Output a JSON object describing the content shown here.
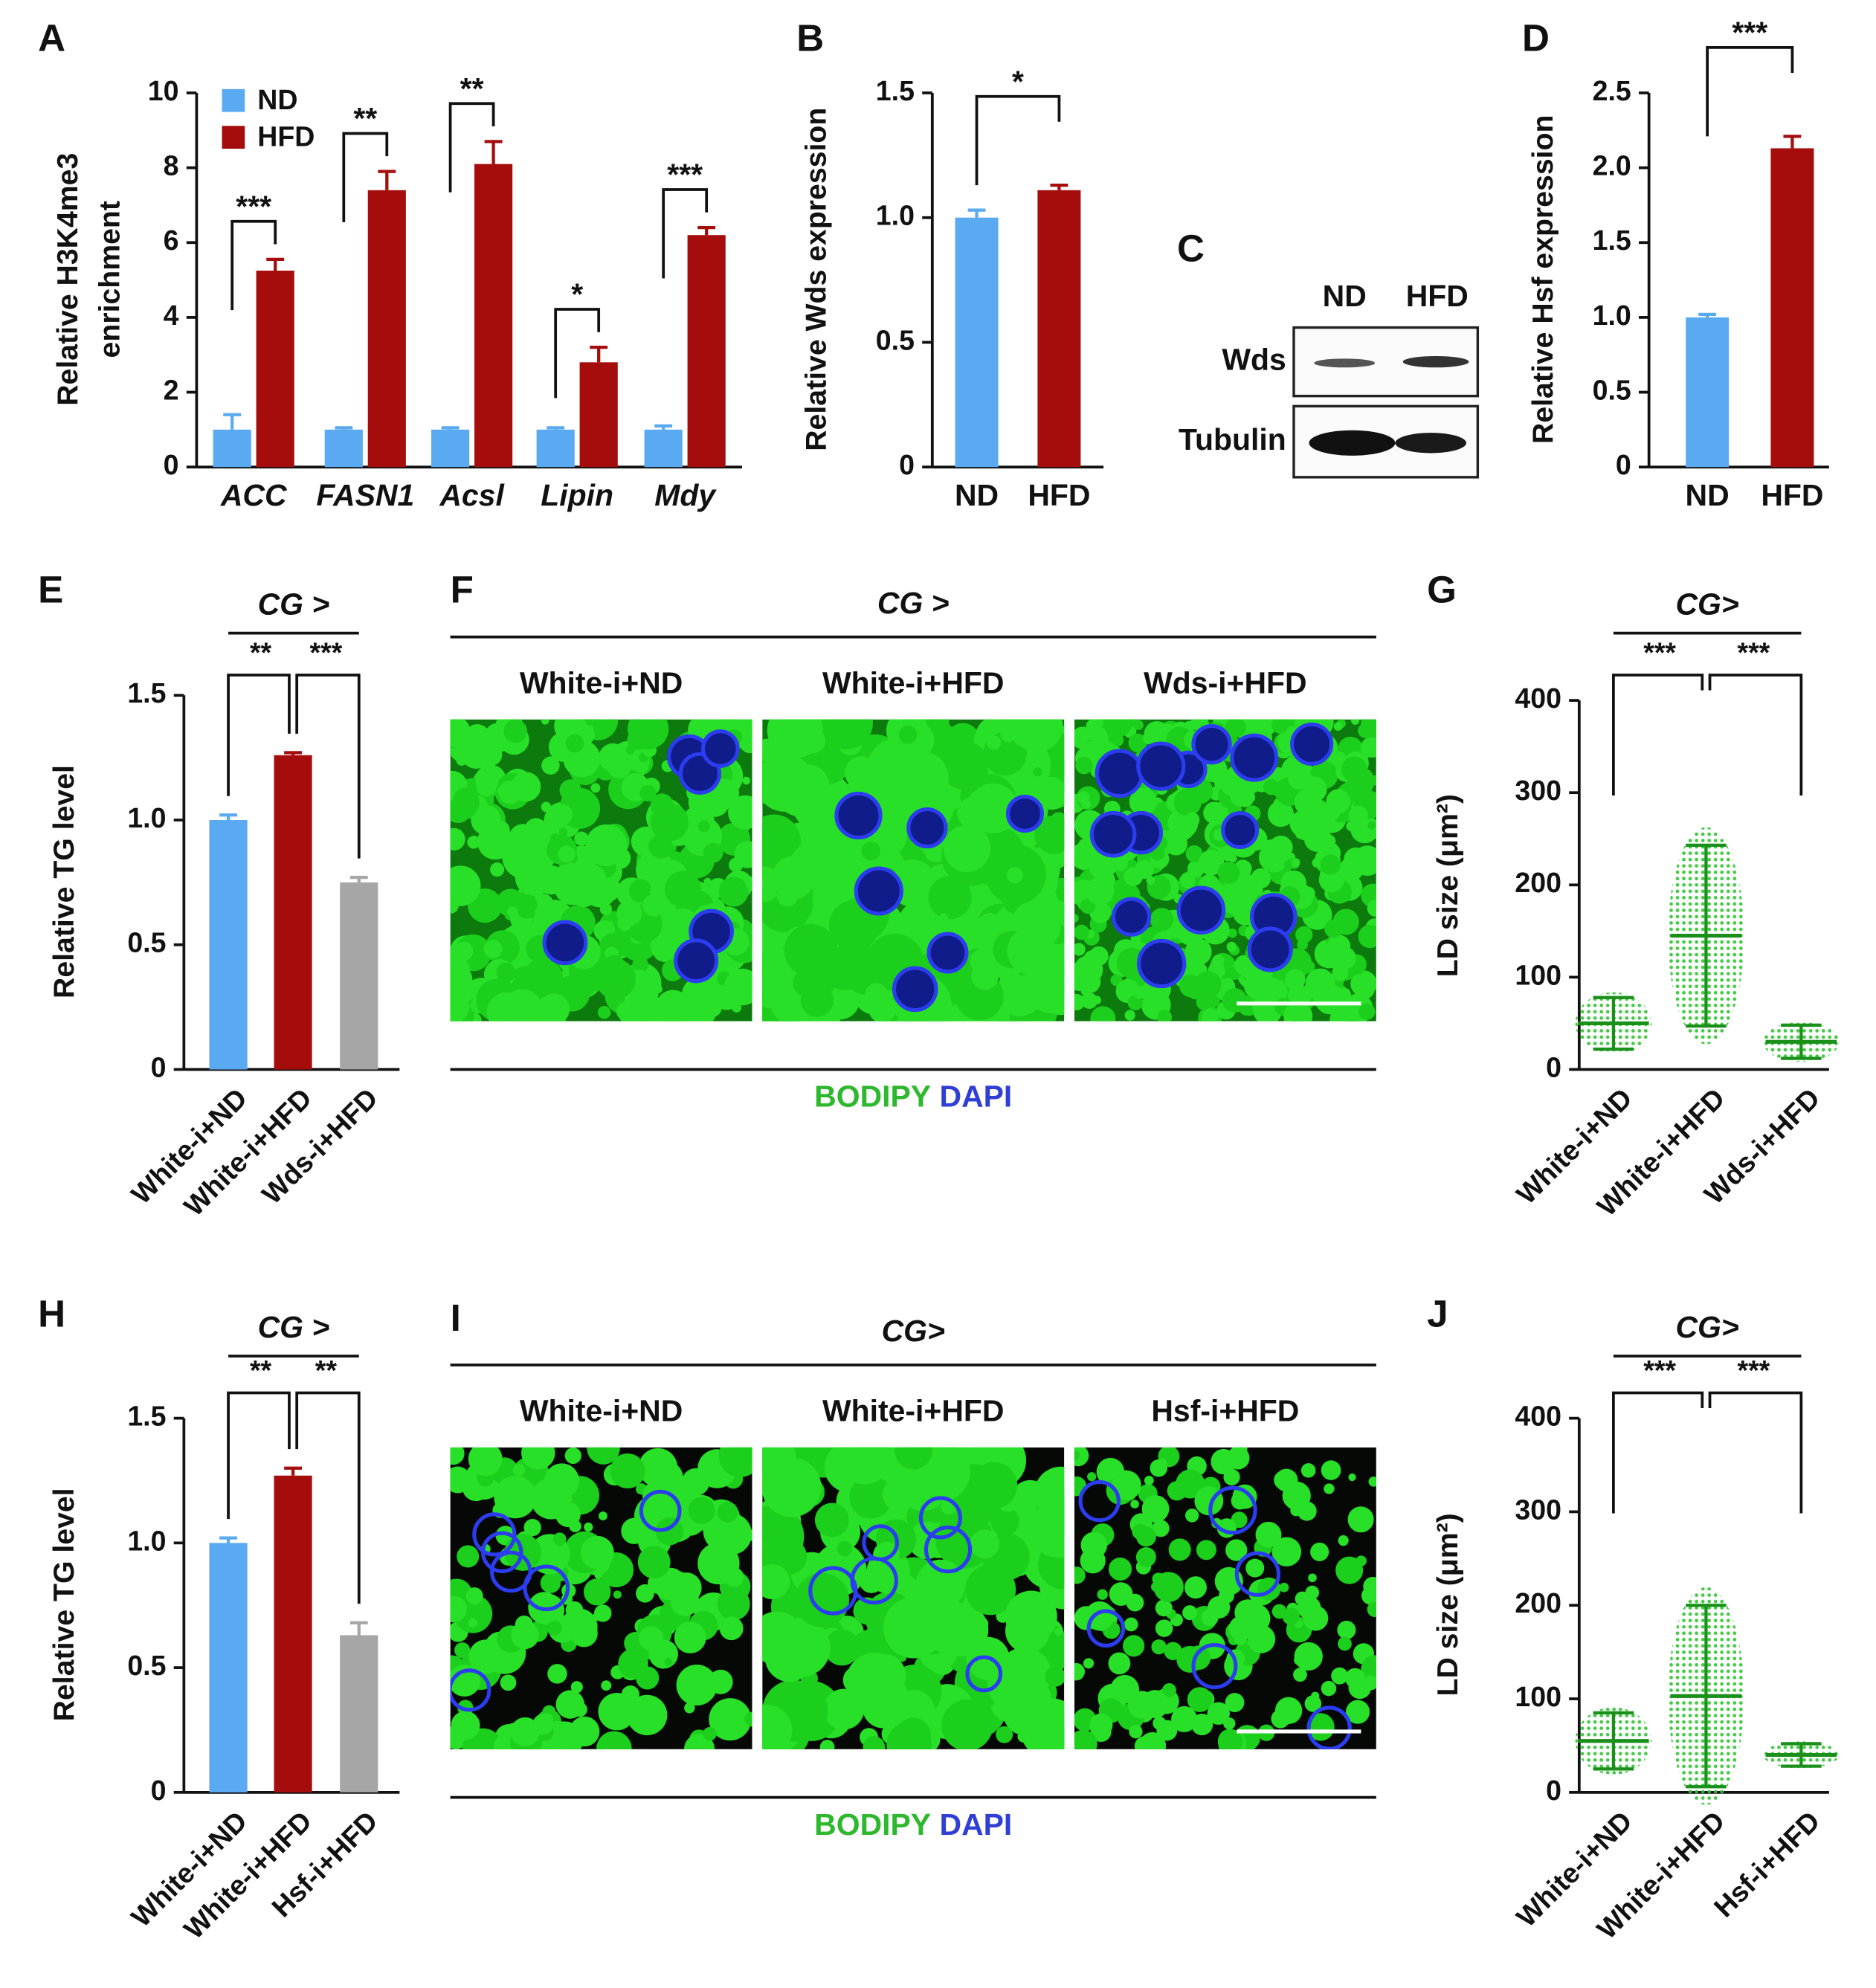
{
  "chart_data": [
    {
      "type": "grouped_bar",
      "panel": "A",
      "ylabel": [
        "Relative H3K4me3",
        "enrichment"
      ],
      "categories": [
        "ACC",
        "FASN1",
        "Acsl",
        "Lipin",
        "Mdy"
      ],
      "series": [
        {
          "name": "ND",
          "color": "#5aaaf2",
          "values": [
            1,
            1,
            1,
            1,
            1
          ],
          "errors": [
            0.4,
            0.05,
            0.05,
            0.05,
            0.1
          ]
        },
        {
          "name": "HFD",
          "color": "#a50d0d",
          "values": [
            5.25,
            7.4,
            8.1,
            2.8,
            6.2
          ],
          "errors": [
            0.3,
            0.5,
            0.6,
            0.4,
            0.2
          ]
        }
      ],
      "ylim": [
        0,
        10
      ],
      "yticks": [
        0,
        2,
        4,
        6,
        8,
        10
      ],
      "significance": [
        "***",
        "**",
        "**",
        "*",
        "***"
      ]
    },
    {
      "type": "bar",
      "panel": "B",
      "ylabel": [
        "Relative Wds expression"
      ],
      "categories": [
        "ND",
        "HFD"
      ],
      "values": [
        1.0,
        1.11
      ],
      "errors": [
        0.03,
        0.02
      ],
      "colors": [
        "#5aaaf2",
        "#a50d0d"
      ],
      "ylim": [
        0,
        1.5
      ],
      "yticks": [
        0,
        0.5,
        {
          "value": 1,
          "label": "1.0"
        },
        1.5
      ],
      "significance": [
        "*"
      ]
    },
    {
      "type": "bar",
      "panel": "D",
      "ylabel": [
        "Relative Hsf expression"
      ],
      "categories": [
        "ND",
        "HFD"
      ],
      "values": [
        1.0,
        2.13
      ],
      "errors": [
        0.02,
        0.08
      ],
      "colors": [
        "#5aaaf2",
        "#a50d0d"
      ],
      "ylim": [
        0,
        2.5
      ],
      "yticks": [
        0,
        0.5,
        {
          "value": 1,
          "label": "1.0"
        },
        1.5,
        {
          "value": 2,
          "label": "2.0"
        },
        2.5
      ],
      "significance": [
        "***"
      ]
    },
    {
      "type": "bar",
      "panel": "E",
      "group_label": "CG >",
      "ylabel": [
        "Relative TG level"
      ],
      "categories": [
        "White-i+ND",
        "White-i+HFD",
        "Wds-i+HFD"
      ],
      "values": [
        1.0,
        1.26,
        0.75
      ],
      "errors": [
        0.02,
        0.01,
        0.02
      ],
      "colors": [
        "#5aaaf2",
        "#a50d0d",
        "#a6a6a6"
      ],
      "ylim": [
        0,
        1.5
      ],
      "yticks": [
        0,
        0.5,
        {
          "value": 1,
          "label": "1.0"
        },
        1.5
      ],
      "significance": [
        "**",
        "***"
      ]
    },
    {
      "type": "dot",
      "panel": "G",
      "group_label": "CG>",
      "ylabel": [
        "LD size (μm²)"
      ],
      "categories": [
        "White-i+ND",
        "White-i+HFD",
        "Wds-i+HFD"
      ],
      "means": [
        50,
        145,
        30
      ],
      "sd": [
        28,
        98,
        18
      ],
      "color": "#22b022",
      "ylim": [
        0,
        400
      ],
      "yticks": [
        0,
        100,
        200,
        300,
        400
      ],
      "significance": [
        "***",
        "***"
      ]
    },
    {
      "type": "bar",
      "panel": "H",
      "group_label": "CG >",
      "ylabel": [
        "Relative TG level"
      ],
      "categories": [
        "White-i+ND",
        "White-i+HFD",
        "Hsf-i+HFD"
      ],
      "values": [
        1.0,
        1.27,
        0.63
      ],
      "errors": [
        0.02,
        0.03,
        0.05
      ],
      "colors": [
        "#5aaaf2",
        "#a50d0d",
        "#a6a6a6"
      ],
      "ylim": [
        0,
        1.5
      ],
      "yticks": [
        0,
        0.5,
        {
          "value": 1,
          "label": "1.0"
        },
        1.5
      ],
      "significance": [
        "**",
        "**"
      ]
    },
    {
      "type": "dot",
      "panel": "J",
      "group_label": "CG>",
      "ylabel": [
        "LD size (μm²)"
      ],
      "categories": [
        "White-i+ND",
        "White-i+HFD",
        "Hsf-i+HFD"
      ],
      "means": [
        55,
        103,
        40
      ],
      "sd": [
        30,
        97,
        12
      ],
      "color": "#22b022",
      "ylim": [
        0,
        400
      ],
      "yticks": [
        0,
        100,
        200,
        300,
        400
      ],
      "significance": [
        "***",
        "***"
      ]
    }
  ],
  "western_blot": {
    "panel": "C",
    "lanes": [
      "ND",
      "HFD"
    ],
    "rows": [
      "Wds",
      "Tubulin"
    ]
  },
  "micrographs": [
    {
      "panel": "F",
      "group_label": "CG >",
      "titles": [
        "White-i+ND",
        "White-i+HFD",
        "Wds-i+HFD"
      ],
      "legend": [
        "BODIPY",
        "DAPI"
      ]
    },
    {
      "panel": "I",
      "group_label": "CG>",
      "titles": [
        "White-i+ND",
        "White-i+HFD",
        "Hsf-i+HFD"
      ],
      "legend": [
        "BODIPY",
        "DAPI"
      ]
    }
  ]
}
